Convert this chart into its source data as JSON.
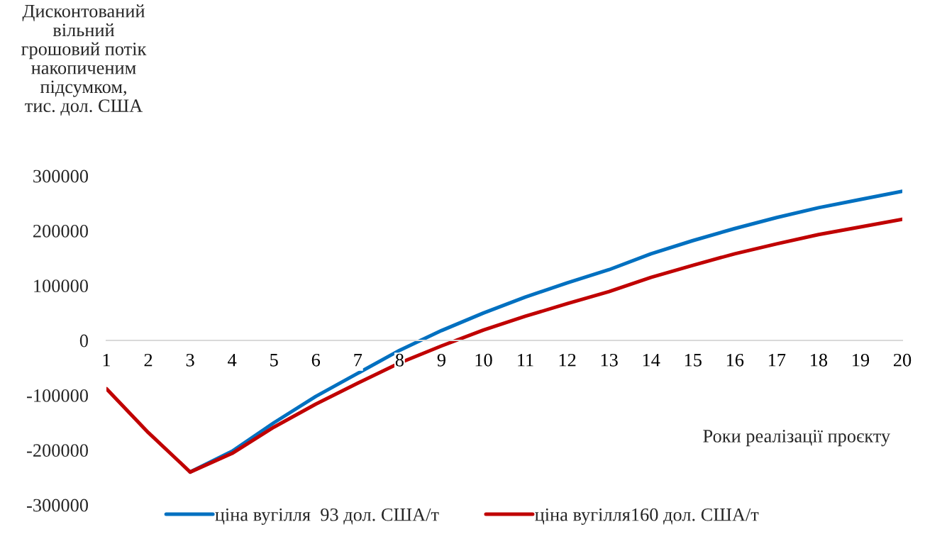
{
  "chart_data": {
    "type": "line",
    "ylabel": "Дисконтований\nвільний\nгрошовий потік\nнакопиченим\nпідсумком,\nтис. дол. США",
    "xlabel": "Роки реалізації проєкту",
    "categories": [
      "1",
      "2",
      "3",
      "4",
      "5",
      "6",
      "7",
      "8",
      "9",
      "10",
      "11",
      "12",
      "13",
      "14",
      "15",
      "16",
      "17",
      "18",
      "19",
      "20"
    ],
    "series": [
      {
        "name": "ціна вугілля  93 дол. США/т",
        "color": "#0070c0",
        "values": [
          null,
          null,
          -240000,
          -202000,
          -150000,
          -102000,
          -60000,
          -18000,
          18000,
          50000,
          79000,
          105000,
          129000,
          158000,
          182000,
          204000,
          224000,
          242000,
          257000,
          272000
        ]
      },
      {
        "name": "ціна вугілля160 дол. США/т",
        "color": "#c00000",
        "values": [
          -88000,
          -168000,
          -240000,
          -206000,
          -158000,
          -116000,
          -78000,
          -41000,
          -10000,
          19000,
          44000,
          67000,
          89000,
          115000,
          137000,
          158000,
          176000,
          193000,
          207000,
          221000
        ]
      }
    ],
    "ylim": [
      -300000,
      300000
    ],
    "yticks": [
      -300000,
      -200000,
      -100000,
      0,
      100000,
      200000,
      300000
    ],
    "grid": false,
    "legend": "bottom",
    "marker": "none",
    "line_style": "solid"
  }
}
